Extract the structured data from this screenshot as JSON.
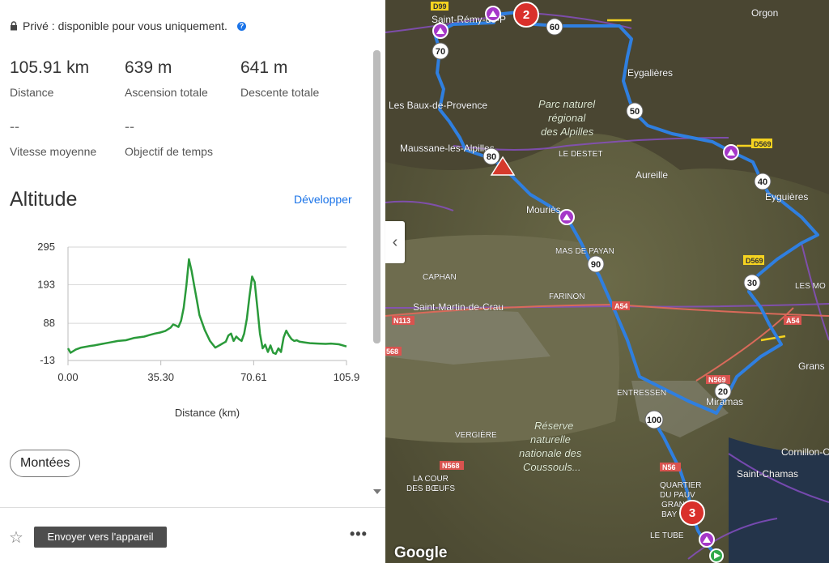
{
  "privacy": {
    "text": "Privé : disponible pour vous uniquement.",
    "help_icon": "?"
  },
  "stats": {
    "distance": {
      "value": "105.91 km",
      "label": "Distance"
    },
    "ascent": {
      "value": "639 m",
      "label": "Ascension totale"
    },
    "descent": {
      "value": "641 m",
      "label": "Descente totale"
    },
    "avg_speed": {
      "value": "--",
      "label": "Vitesse moyenne"
    },
    "time_goal": {
      "value": "--",
      "label": "Objectif de temps"
    }
  },
  "altitude": {
    "title": "Altitude",
    "expand_link": "Développer"
  },
  "chart_data": {
    "type": "line",
    "xlabel": "Distance (km)",
    "ylabel": "",
    "x_ticks": [
      "0.00",
      "35.30",
      "70.61",
      "105.9"
    ],
    "y_ticks": [
      "295",
      "193",
      "88",
      "-13"
    ],
    "xlim": [
      0,
      105.9
    ],
    "ylim": [
      -13,
      295
    ],
    "grid": true,
    "series": [
      {
        "color": "#2a9a3a",
        "x": [
          0,
          1,
          3,
          5,
          8,
          10,
          13,
          16,
          19,
          22,
          25,
          27,
          29,
          31,
          33,
          35,
          37,
          39,
          40,
          41,
          42,
          43,
          44,
          45,
          46,
          47,
          48,
          49,
          50,
          52,
          54,
          56,
          57,
          58,
          59,
          60,
          61,
          62,
          63,
          64,
          65,
          66,
          67,
          68,
          69,
          70,
          71,
          72,
          73,
          74,
          75,
          76,
          77,
          78,
          79,
          80,
          81,
          82,
          83,
          84,
          85,
          86,
          87,
          88,
          90,
          92,
          95,
          98,
          100,
          103,
          105.9
        ],
        "y": [
          20,
          8,
          17,
          22,
          26,
          28,
          32,
          36,
          40,
          42,
          48,
          50,
          52,
          56,
          60,
          63,
          67,
          76,
          85,
          82,
          78,
          95,
          130,
          190,
          262,
          230,
          190,
          150,
          110,
          70,
          40,
          22,
          26,
          30,
          34,
          38,
          55,
          60,
          40,
          52,
          45,
          40,
          60,
          100,
          160,
          215,
          200,
          130,
          60,
          20,
          30,
          10,
          28,
          8,
          5,
          20,
          10,
          50,
          68,
          55,
          45,
          40,
          42,
          38,
          36,
          34,
          33,
          32,
          33,
          31,
          25
        ]
      }
    ]
  },
  "climbs_button": "Montées",
  "footer": {
    "send_button": "Envoyer vers l'appareil",
    "star_icon": "☆",
    "more_icon": "•••"
  },
  "collapse_icon": "‹",
  "map": {
    "google_logo": "Google",
    "markers": {
      "m2": "2",
      "m3": "3",
      "d60": "60",
      "d70": "70",
      "d50": "50",
      "d40": "40",
      "d30": "30",
      "d20": "20",
      "d90": "90",
      "d100": "100",
      "d80": "80"
    },
    "labels": {
      "saint_remy": "Saint-Rémy-de-P",
      "orgon": "Orgon",
      "eygalieres": "Eygalières",
      "les_baux": "Les Baux-de-Provence",
      "parc_1": "Parc naturel",
      "parc_2": "régional",
      "parc_3": "des Alpilles",
      "maussane": "Maussane-les-Alpilles",
      "le_destet": "LE DESTET",
      "aureille": "Aureille",
      "eyguieres": "Eyguières",
      "mouries": "Mouriès",
      "mas_payan": "MAS DE PAYAN",
      "caphan": "CAPHAN",
      "farinon": "FARINON",
      "st_martin": "Saint-Martin-de-Crau",
      "les_mo": "LES MO",
      "entressen": "ENTRESSEN",
      "miramas": "Miramas",
      "grans": "Grans",
      "vergiere": "VERGIÈRE",
      "reserve_1": "Réserve",
      "reserve_2": "naturelle",
      "reserve_3": "nationale des",
      "reserve_4": "Coussouls...",
      "cornillon": "Cornillon-Co",
      "saint_chamas": "Saint-Chamas",
      "la_cour_1": "LA COUR",
      "la_cour_2": "DES BŒUFS",
      "quartier_1": "QUARTIER",
      "quartier_2": "DU PAUV",
      "quartier_3": "GRAN",
      "quartier_4": "BAY",
      "le_tube": "LE TUBE",
      "d99": "D99",
      "d569a": "D569",
      "d569b": "D569",
      "a54a": "A54",
      "a54b": "A54",
      "n113": "N113",
      "n568a": "N568",
      "n568b": "568",
      "n569a": "N569",
      "n569b": "N56"
    }
  }
}
